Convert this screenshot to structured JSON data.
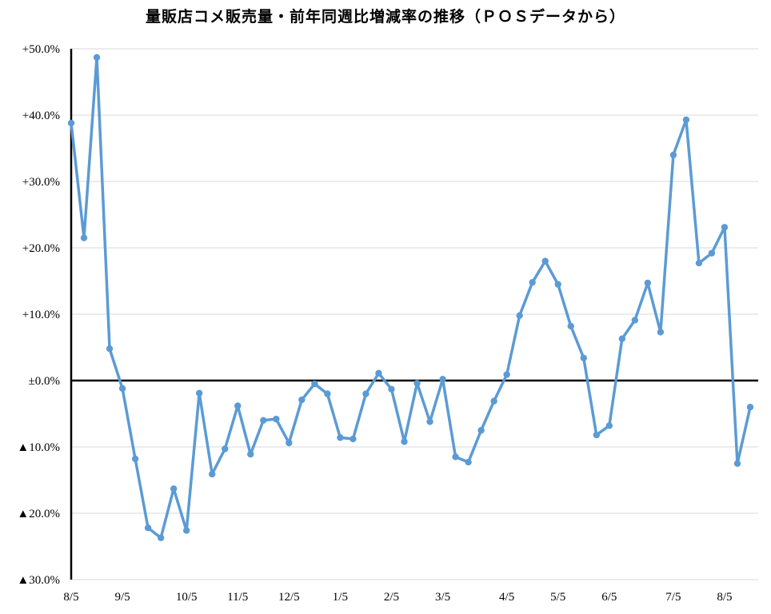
{
  "chart_data": {
    "type": "line",
    "title": "量販店コメ販売量・前年同週比増減率の推移（ＰＯＳデータから）",
    "xlabel": "",
    "ylabel": "",
    "ylim": [
      -30,
      50
    ],
    "yticks": [
      50,
      40,
      30,
      20,
      10,
      0,
      -10,
      -20,
      -30
    ],
    "ytick_labels": [
      "+50.0%",
      "+40.0%",
      "+30.0%",
      "+20.0%",
      "+10.0%",
      "±0.0%",
      "▲10.0%",
      "▲20.0%",
      "▲30.0%"
    ],
    "xtick_labels": [
      "8/5",
      "9/5",
      "10/5",
      "11/5",
      "12/5",
      "1/5",
      "2/5",
      "3/5",
      "4/5",
      "5/5",
      "6/5",
      "7/5",
      "8/5"
    ],
    "xtick_positions": [
      0,
      4,
      9,
      13,
      17,
      21,
      25,
      29,
      34,
      38,
      42,
      47,
      51
    ],
    "grid": true,
    "legend": "none",
    "series": [
      {
        "color": "#5B9BD5",
        "values": [
          38.8,
          21.5,
          48.7,
          4.8,
          -1.2,
          -11.8,
          -22.2,
          -23.7,
          -16.3,
          -22.6,
          -1.9,
          -14.1,
          -10.3,
          -3.8,
          -11.1,
          -6.0,
          -5.8,
          -9.4,
          -2.9,
          -0.5,
          -2.0,
          -8.6,
          -8.8,
          -2.0,
          1.1,
          -1.3,
          -9.2,
          -0.4,
          -6.2,
          0.2,
          -11.5,
          -12.3,
          -7.5,
          -3.1,
          0.9,
          9.8,
          14.8,
          18.0,
          14.5,
          8.2,
          3.4,
          -8.2,
          -6.8,
          6.3,
          9.1,
          14.7,
          7.3,
          34.0,
          39.3,
          17.7,
          19.2,
          23.1,
          -12.5,
          -4.0
        ]
      }
    ]
  }
}
